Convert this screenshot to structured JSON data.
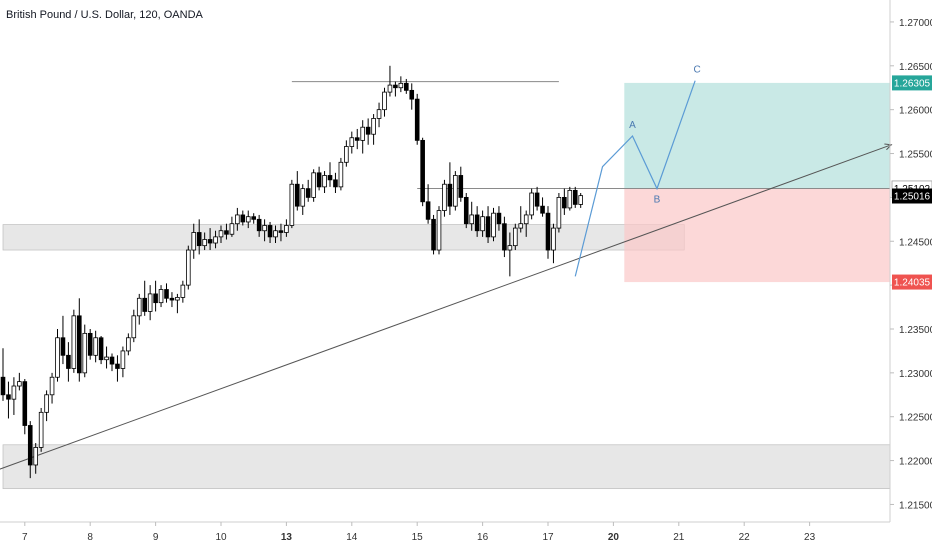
{
  "header": {
    "title": "British Pound / U.S. Dollar, 120, OANDA"
  },
  "price_labels": {
    "target": "1.26305",
    "entry": "1.25102",
    "current": "1.25016",
    "stop": "1.24035"
  },
  "pattern_labels": {
    "a": "A",
    "b": "B",
    "c": "C"
  },
  "colors": {
    "candle": "#000000",
    "profit_zone": "#b2dfdb",
    "loss_zone": "#fbc8c8",
    "support_zone": "#e3e3e3",
    "target_label_bg": "#26a69a",
    "stop_label_bg": "#ef5350",
    "current_label_bg": "#000000",
    "pattern_line": "#5b9bd5",
    "trend_line": "#555555"
  },
  "chart_data": {
    "type": "candlestick",
    "title": "British Pound / U.S. Dollar, 120, OANDA",
    "ylim": [
      1.213,
      1.2725
    ],
    "y_ticks": [
      "1.27000",
      "1.26500",
      "1.26000",
      "1.25500",
      "1.25000",
      "1.24500",
      "1.24000",
      "1.23500",
      "1.23000",
      "1.22500",
      "1.22000",
      "1.21500"
    ],
    "x_ticks": [
      "7",
      "8",
      "9",
      "10",
      "13",
      "14",
      "15",
      "16",
      "17",
      "20",
      "21",
      "22",
      "23"
    ],
    "x_tick_index": [
      4,
      16,
      28,
      40,
      52,
      64,
      76,
      88,
      100,
      112,
      124,
      136,
      148
    ],
    "grid": false,
    "candles": [
      [
        1.2295,
        1.2328,
        1.2268,
        1.2275
      ],
      [
        1.2275,
        1.229,
        1.2248,
        1.227
      ],
      [
        1.227,
        1.2295,
        1.2252,
        1.2285
      ],
      [
        1.2285,
        1.23,
        1.228,
        1.229
      ],
      [
        1.229,
        1.2293,
        1.223,
        1.224
      ],
      [
        1.224,
        1.2245,
        1.218,
        1.2195
      ],
      [
        1.2195,
        1.222,
        1.2185,
        1.2215
      ],
      [
        1.2215,
        1.226,
        1.221,
        1.2255
      ],
      [
        1.2255,
        1.228,
        1.2245,
        1.2275
      ],
      [
        1.2275,
        1.23,
        1.2265,
        1.2295
      ],
      [
        1.2295,
        1.235,
        1.229,
        1.234
      ],
      [
        1.234,
        1.2365,
        1.231,
        1.232
      ],
      [
        1.232,
        1.2335,
        1.229,
        1.2305
      ],
      [
        1.2305,
        1.2372,
        1.23,
        1.2365
      ],
      [
        1.2365,
        1.2385,
        1.229,
        1.23
      ],
      [
        1.23,
        1.2355,
        1.2295,
        1.2345
      ],
      [
        1.2345,
        1.235,
        1.2315,
        1.232
      ],
      [
        1.232,
        1.2348,
        1.2312,
        1.234
      ],
      [
        1.234,
        1.2342,
        1.231,
        1.2315
      ],
      [
        1.2315,
        1.233,
        1.2305,
        1.2318
      ],
      [
        1.2318,
        1.2322,
        1.2302,
        1.231
      ],
      [
        1.231,
        1.232,
        1.229,
        1.2305
      ],
      [
        1.2305,
        1.233,
        1.2295,
        1.2325
      ],
      [
        1.2325,
        1.2345,
        1.232,
        1.234
      ],
      [
        1.234,
        1.2372,
        1.2335,
        1.2365
      ],
      [
        1.2365,
        1.239,
        1.2355,
        1.2385
      ],
      [
        1.2385,
        1.2405,
        1.2365,
        1.237
      ],
      [
        1.237,
        1.24,
        1.236,
        1.239
      ],
      [
        1.239,
        1.2405,
        1.237,
        1.238
      ],
      [
        1.238,
        1.24,
        1.2375,
        1.2395
      ],
      [
        1.2395,
        1.2402,
        1.238,
        1.2385
      ],
      [
        1.2385,
        1.2392,
        1.2375,
        1.2383
      ],
      [
        1.2383,
        1.239,
        1.2368,
        1.2386
      ],
      [
        1.2386,
        1.2405,
        1.238,
        1.24
      ],
      [
        1.24,
        1.2445,
        1.2395,
        1.244
      ],
      [
        1.244,
        1.247,
        1.243,
        1.246
      ],
      [
        1.246,
        1.2475,
        1.2435,
        1.2445
      ],
      [
        1.2445,
        1.246,
        1.244,
        1.2452
      ],
      [
        1.2452,
        1.2465,
        1.244,
        1.2448
      ],
      [
        1.2448,
        1.2462,
        1.2442,
        1.2455
      ],
      [
        1.2455,
        1.2468,
        1.2448,
        1.2462
      ],
      [
        1.2462,
        1.247,
        1.2452,
        1.2458
      ],
      [
        1.2458,
        1.2478,
        1.2455,
        1.247
      ],
      [
        1.247,
        1.2488,
        1.2462,
        1.248
      ],
      [
        1.248,
        1.2485,
        1.2468,
        1.2472
      ],
      [
        1.2472,
        1.2485,
        1.2465,
        1.2478
      ],
      [
        1.2478,
        1.2482,
        1.247,
        1.2475
      ],
      [
        1.2475,
        1.248,
        1.2455,
        1.2462
      ],
      [
        1.2462,
        1.2475,
        1.245,
        1.2468
      ],
      [
        1.2468,
        1.2472,
        1.2448,
        1.2455
      ],
      [
        1.2455,
        1.2468,
        1.2448,
        1.2462
      ],
      [
        1.2462,
        1.247,
        1.245,
        1.246
      ],
      [
        1.246,
        1.2475,
        1.2455,
        1.2468
      ],
      [
        1.2468,
        1.252,
        1.2465,
        1.2515
      ],
      [
        1.2515,
        1.253,
        1.2485,
        1.249
      ],
      [
        1.249,
        1.2515,
        1.248,
        1.251
      ],
      [
        1.251,
        1.252,
        1.2495,
        1.25
      ],
      [
        1.25,
        1.2532,
        1.2495,
        1.2528
      ],
      [
        1.2528,
        1.2535,
        1.2508,
        1.2512
      ],
      [
        1.2512,
        1.253,
        1.2505,
        1.2525
      ],
      [
        1.2525,
        1.254,
        1.2512,
        1.252
      ],
      [
        1.252,
        1.2528,
        1.2505,
        1.2512
      ],
      [
        1.2512,
        1.2545,
        1.2508,
        1.254
      ],
      [
        1.254,
        1.2565,
        1.2535,
        1.2558
      ],
      [
        1.2558,
        1.2575,
        1.255,
        1.2568
      ],
      [
        1.2568,
        1.2578,
        1.2555,
        1.2565
      ],
      [
        1.2565,
        1.2588,
        1.255,
        1.258
      ],
      [
        1.258,
        1.259,
        1.256,
        1.2572
      ],
      [
        1.2572,
        1.2595,
        1.256,
        1.259
      ],
      [
        1.259,
        1.2608,
        1.258,
        1.26
      ],
      [
        1.26,
        1.2625,
        1.2592,
        1.262
      ],
      [
        1.262,
        1.265,
        1.2615,
        1.2628
      ],
      [
        1.2628,
        1.2632,
        1.2615,
        1.2625
      ],
      [
        1.2625,
        1.2638,
        1.262,
        1.263
      ],
      [
        1.263,
        1.2635,
        1.2618,
        1.2622
      ],
      [
        1.2622,
        1.263,
        1.26,
        1.2612
      ],
      [
        1.2612,
        1.2618,
        1.256,
        1.2565
      ],
      [
        1.2565,
        1.2568,
        1.249,
        1.2495
      ],
      [
        1.2495,
        1.2515,
        1.247,
        1.2475
      ],
      [
        1.2475,
        1.248,
        1.2435,
        1.244
      ],
      [
        1.244,
        1.249,
        1.2435,
        1.2485
      ],
      [
        1.2485,
        1.252,
        1.2478,
        1.2515
      ],
      [
        1.2515,
        1.254,
        1.248,
        1.249
      ],
      [
        1.249,
        1.253,
        1.2485,
        1.2525
      ],
      [
        1.2525,
        1.2535,
        1.2495,
        1.25
      ],
      [
        1.25,
        1.2505,
        1.2465,
        1.247
      ],
      [
        1.247,
        1.2495,
        1.2462,
        1.248
      ],
      [
        1.248,
        1.249,
        1.2455,
        1.2462
      ],
      [
        1.2462,
        1.2485,
        1.2455,
        1.2478
      ],
      [
        1.2478,
        1.249,
        1.2448,
        1.2455
      ],
      [
        1.2455,
        1.2488,
        1.245,
        1.2482
      ],
      [
        1.2482,
        1.249,
        1.2462,
        1.247
      ],
      [
        1.247,
        1.2478,
        1.2432,
        1.244
      ],
      [
        1.244,
        1.246,
        1.241,
        1.2445
      ],
      [
        1.2445,
        1.247,
        1.244,
        1.2465
      ],
      [
        1.2465,
        1.249,
        1.246,
        1.247
      ],
      [
        1.247,
        1.2485,
        1.2455,
        1.248
      ],
      [
        1.248,
        1.251,
        1.2475,
        1.2505
      ],
      [
        1.2505,
        1.2512,
        1.2485,
        1.249
      ],
      [
        1.249,
        1.25,
        1.2478,
        1.2482
      ],
      [
        1.2482,
        1.249,
        1.243,
        1.244
      ],
      [
        1.244,
        1.247,
        1.2425,
        1.2465
      ],
      [
        1.2465,
        1.2505,
        1.246,
        1.25
      ],
      [
        1.25,
        1.251,
        1.248,
        1.2488
      ],
      [
        1.2488,
        1.2512,
        1.2485,
        1.2508
      ],
      [
        1.2508,
        1.2512,
        1.2488,
        1.2492
      ],
      [
        1.2492,
        1.2505,
        1.2488,
        1.2502
      ]
    ],
    "horizontal_lines": [
      {
        "name": "top resistance",
        "y": 1.2632,
        "from_index": 53,
        "to_index": 102
      },
      {
        "name": "entry",
        "y": 1.25102,
        "from_index": 76,
        "to_index": 180
      }
    ],
    "zones": [
      {
        "kind": "support",
        "y_top": 1.2469,
        "y_bottom": 1.244,
        "from_index": 0,
        "to_index": 125
      },
      {
        "kind": "support",
        "y_top": 1.2218,
        "y_bottom": 1.2168,
        "from_index": 0,
        "to_index": 180
      },
      {
        "kind": "profit",
        "y_top": 1.26305,
        "y_bottom": 1.25102,
        "from_index": 114,
        "to_index": 180
      },
      {
        "kind": "loss",
        "y_top": 1.25102,
        "y_bottom": 1.24035,
        "from_index": 114,
        "to_index": 180
      }
    ],
    "trend_line": {
      "x1_index": -6,
      "y1": 1.2178,
      "x2_index": 163,
      "y2": 1.256
    },
    "pattern_path": [
      {
        "index": 105,
        "y": 1.241,
        "label": ""
      },
      {
        "index": 110,
        "y": 1.2535,
        "label": ""
      },
      {
        "index": 115.5,
        "y": 1.257,
        "label": "A"
      },
      {
        "index": 120,
        "y": 1.251,
        "label": "B"
      },
      {
        "index": 127,
        "y": 1.2633,
        "label": "C"
      }
    ]
  }
}
